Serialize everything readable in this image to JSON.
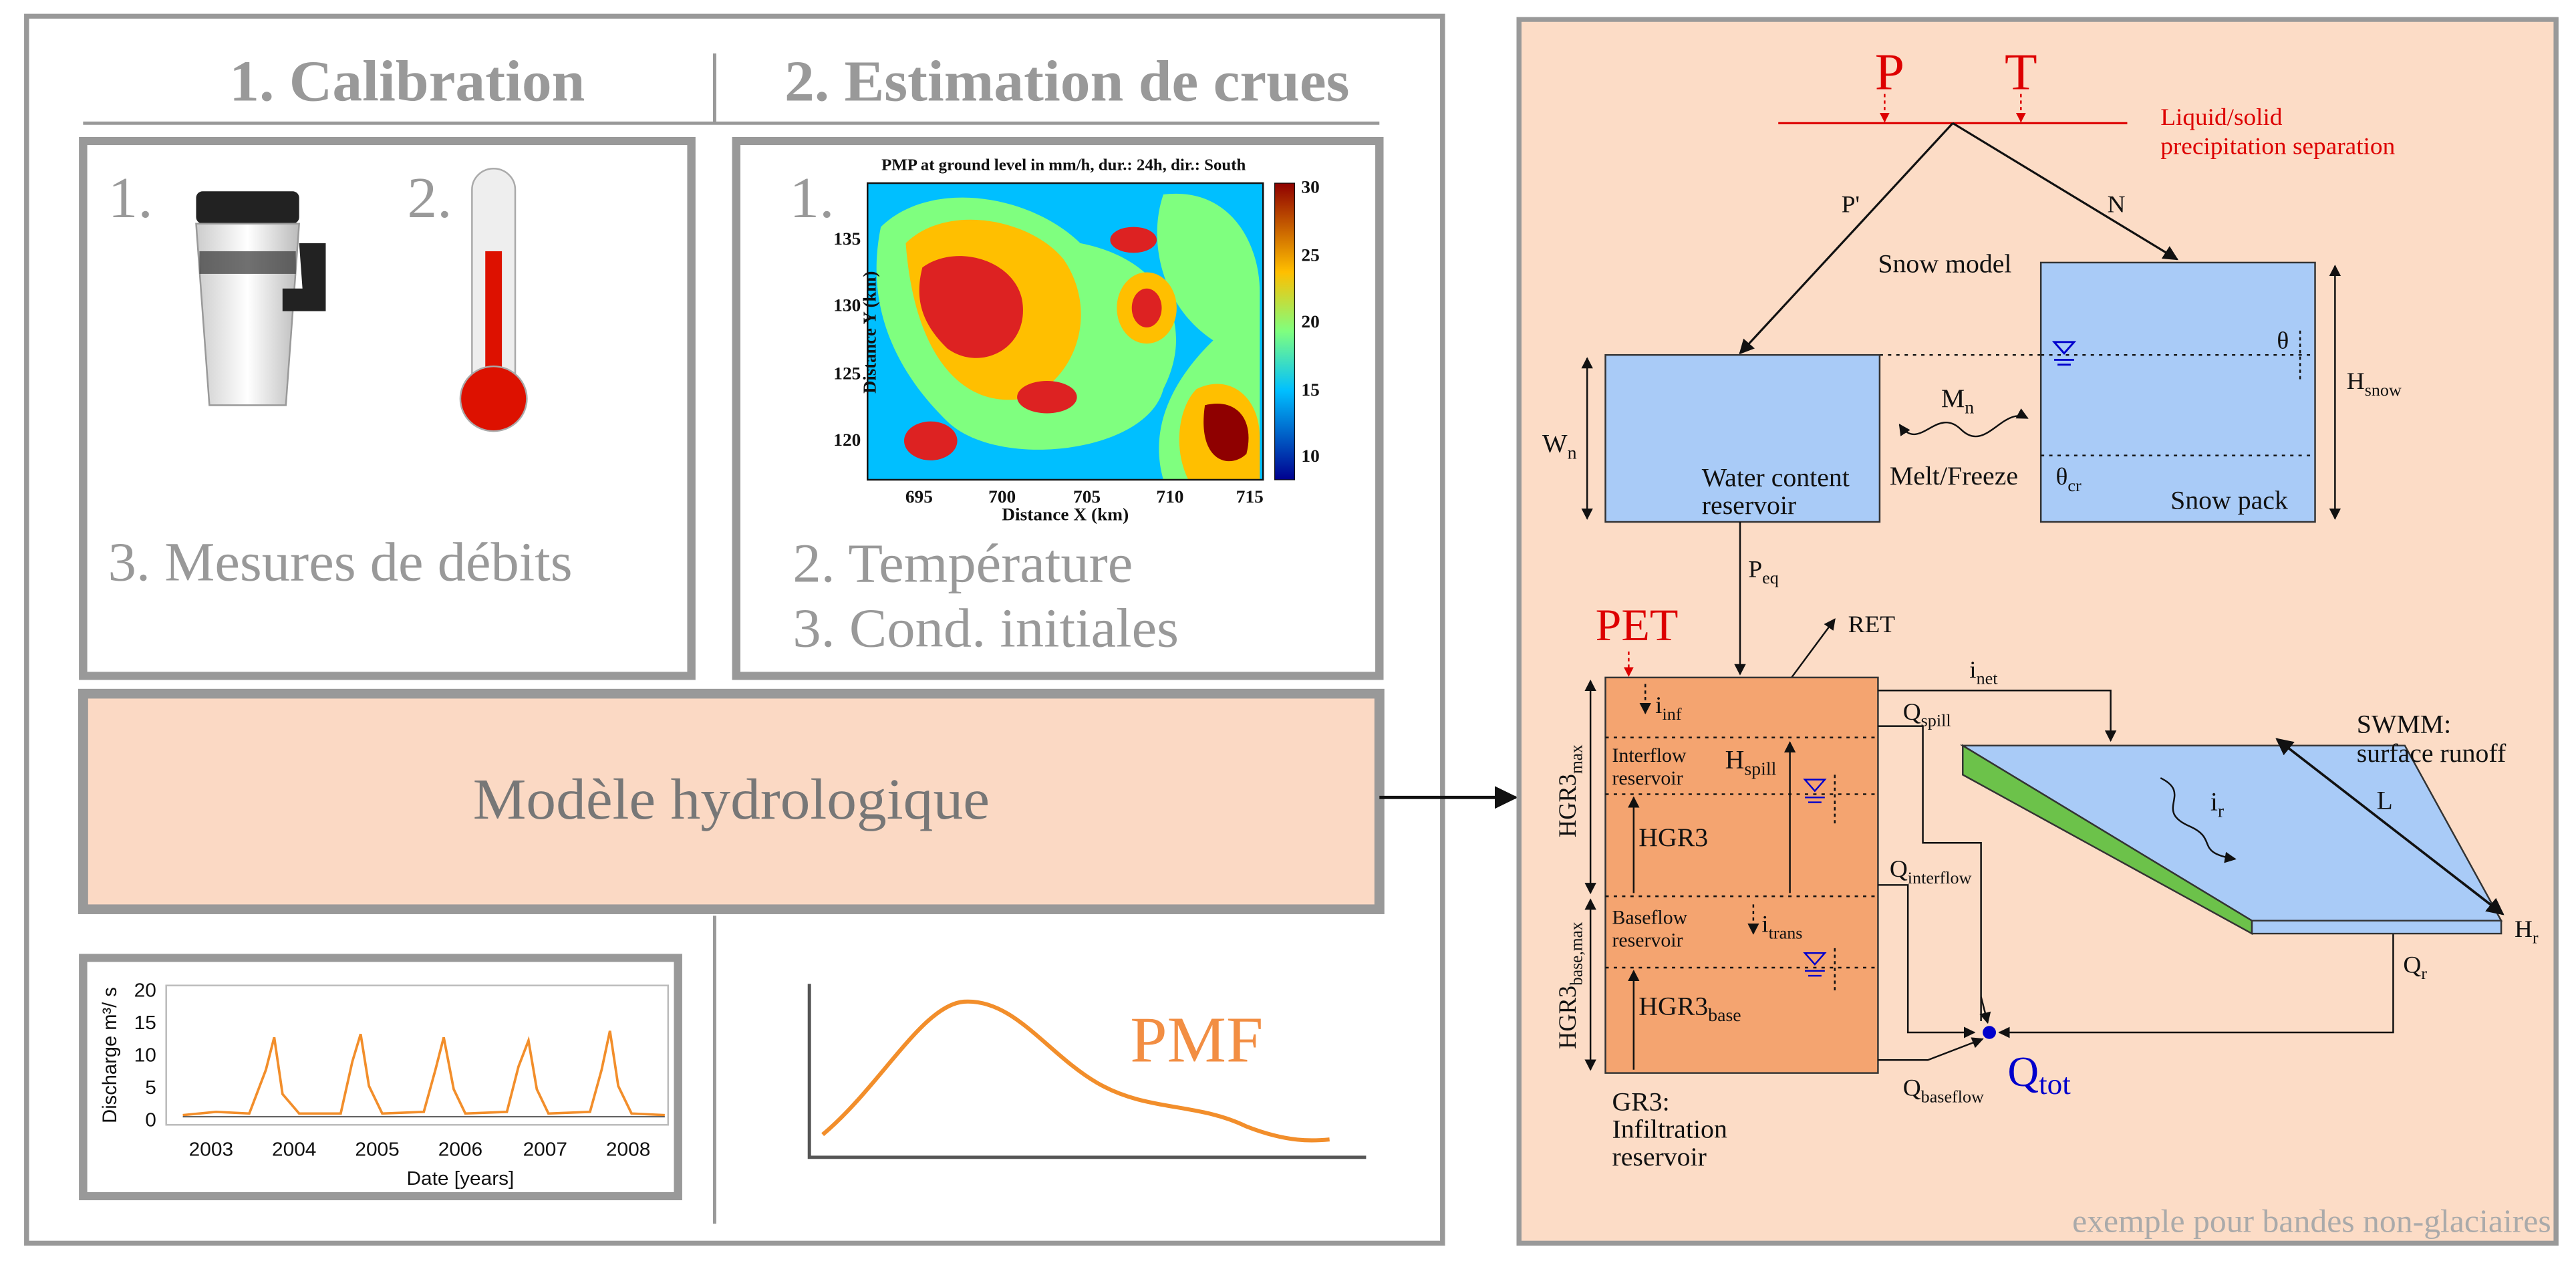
{
  "calibration": {
    "title": "1. Calibration",
    "item1": "1.",
    "item2": "2.",
    "item3": "3. Mesures de débits"
  },
  "estimation": {
    "title": "2. Estimation de crues",
    "item1": "1.",
    "item2": "2. Température",
    "item3": "3. Cond. initiales"
  },
  "pmp_map": {
    "title": "PMP at ground level in mm/h, dur.: 24h, dir.: South",
    "xlabel": "Distance X (km)",
    "ylabel": "Distance Y (km)",
    "xticks": [
      "695",
      "700",
      "705",
      "710",
      "715"
    ],
    "yticks": [
      "120",
      "125",
      "130",
      "135"
    ],
    "colorbar_ticks": [
      "10",
      "15",
      "20",
      "25",
      "30"
    ]
  },
  "model": "Modèle hydrologique",
  "discharge_chart": {
    "ylabel": "Discharge  m³/ s",
    "xlabel": "Date [years]",
    "yticks": [
      "0",
      "5",
      "10",
      "15",
      "20"
    ],
    "xticks": [
      "2003",
      "2004",
      "2005",
      "2006",
      "2007",
      "2008"
    ]
  },
  "pmf": "PMF",
  "scheme": {
    "P": "P",
    "T": "T",
    "separation": [
      "Liquid/solid",
      "precipitation separation"
    ],
    "P_prime": "P'",
    "N": "N",
    "snow_model": "Snow model",
    "water_reservoir": [
      "Water content",
      "reservoir"
    ],
    "snow_pack": "Snow pack",
    "theta": "θ",
    "theta_cr": {
      "main": "θ",
      "sub": "cr"
    },
    "W_n": {
      "main": "W",
      "sub": "n"
    },
    "H_snow": {
      "main": "H",
      "sub": "snow"
    },
    "M_n": {
      "main": "M",
      "sub": "n"
    },
    "melt": "Melt/Freeze",
    "P_eq": {
      "main": "P",
      "sub": "eq"
    },
    "PET": "PET",
    "RET": "RET",
    "i_inf": {
      "main": "i",
      "sub": "inf"
    },
    "interflow_reservoir": [
      "Interflow",
      "reservoir"
    ],
    "H_spill": {
      "main": "H",
      "sub": "spill"
    },
    "HGR3": "HGR3",
    "baseflow_reservoir": [
      "Baseflow",
      "reservoir"
    ],
    "i_trans": {
      "main": "i",
      "sub": "trans"
    },
    "HGR3_base": {
      "main": "HGR3",
      "sub": "base"
    },
    "HGR3_max": {
      "main": "HGR3",
      "sub": "max"
    },
    "HGR3_base_max": {
      "main": "HGR3",
      "sub": "base,max"
    },
    "Q_spill": {
      "main": "Q",
      "sub": "spill"
    },
    "Q_interflow": {
      "main": "Q",
      "sub": "interflow"
    },
    "Q_baseflow": {
      "main": "Q",
      "sub": "baseflow"
    },
    "Q_tot": {
      "main": "Q",
      "sub": "tot"
    },
    "gr3": [
      "GR3:",
      "Infiltration",
      "reservoir"
    ],
    "i_net": {
      "main": "i",
      "sub": "net"
    },
    "swmm": [
      "SWMM:",
      "surface runoff"
    ],
    "L": "L",
    "i_r": {
      "main": "i",
      "sub": "r"
    },
    "H_r": {
      "main": "H",
      "sub": "r"
    },
    "Q_r": {
      "main": "Q",
      "sub": "r"
    }
  },
  "footer": "exemple pour bandes non-glaciaires"
}
